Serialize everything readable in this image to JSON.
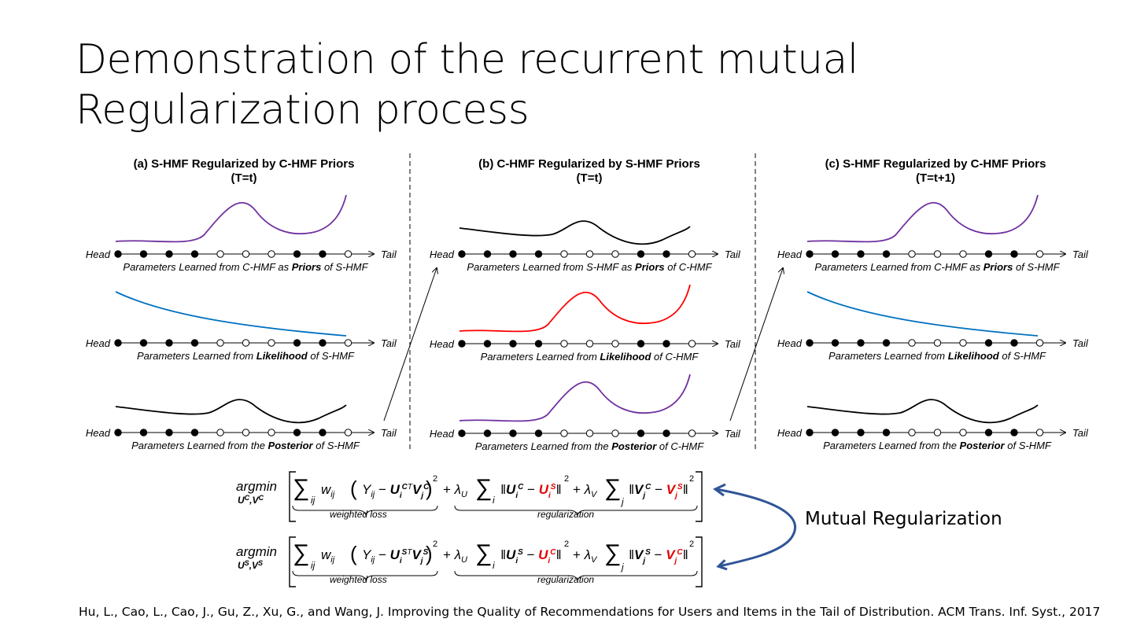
{
  "title": {
    "line1": "Demonstration of the recurrent mutual",
    "line2": "Regularization process"
  },
  "panels": [
    {
      "title_line1": "(a) S-HMF Regularized by C-HMF Priors",
      "title_line2": "(T=t)",
      "rows": [
        {
          "curve": "bump-rise",
          "color": "#7030a0",
          "caption_pre": "Parameters Learned from C-HMF as ",
          "caption_bold": "Priors",
          "caption_post": " of S-HMF"
        },
        {
          "curve": "decay",
          "color": "#0070c0",
          "caption_pre": "Parameters Learned from ",
          "caption_bold": "Likelihood",
          "caption_post": " of S-HMF"
        },
        {
          "curve": "posterior",
          "color": "#000000",
          "caption_pre": "Parameters Learned from the ",
          "caption_bold": "Posterior",
          "caption_post": " of S-HMF"
        }
      ]
    },
    {
      "title_line1": "(b) C-HMF Regularized by S-HMF Priors",
      "title_line2": "(T=t)",
      "rows": [
        {
          "curve": "posterior",
          "color": "#000000",
          "caption_pre": "Parameters Learned from S-HMF as ",
          "caption_bold": "Priors",
          "caption_post": " of C-HMF"
        },
        {
          "curve": "bump-rise",
          "color": "#ff0000",
          "caption_pre": "Parameters Learned from ",
          "caption_bold": "Likelihood",
          "caption_post": " of C-HMF"
        },
        {
          "curve": "bump-rise",
          "color": "#7030a0",
          "caption_pre": "Parameters Learned from the ",
          "caption_bold": "Posterior",
          "caption_post": " of C-HMF"
        }
      ]
    },
    {
      "title_line1": "(c) S-HMF Regularized by C-HMF Priors",
      "title_line2": "(T=t+1)",
      "rows": [
        {
          "curve": "bump-rise",
          "color": "#7030a0",
          "caption_pre": "Parameters Learned from C-HMF as ",
          "caption_bold": "Priors",
          "caption_post": " of S-HMF"
        },
        {
          "curve": "decay",
          "color": "#0070c0",
          "caption_pre": "Parameters Learned from ",
          "caption_bold": "Likelihood",
          "caption_post": " of S-HMF"
        },
        {
          "curve": "posterior",
          "color": "#000000",
          "caption_pre": "Parameters Learned from the ",
          "caption_bold": "Posterior",
          "caption_post": " of S-HMF"
        }
      ]
    }
  ],
  "axis": {
    "head_label": "Head",
    "tail_label": "Tail",
    "dot_pattern": [
      1,
      1,
      1,
      1,
      0,
      0,
      0,
      1,
      1,
      0
    ]
  },
  "equations": {
    "argmin": "argmin",
    "eq1_sub": "U",
    "eq1_subsup": "C",
    "eq2_subsup": "S",
    "weighted_loss": "weighted loss",
    "regularization": "regularization",
    "lambda_u": "λ",
    "lambda_v": "λ"
  },
  "mutual_label": "Mutual Regularization",
  "citation": "Hu, L., Cao, L., Cao, J., Gu, Z., Xu, G., and Wang, J. Improving the Quality of Recommendations for Users and Items in the Tail of Distribution. ACM Trans. Inf. Syst., 2017",
  "colors": {
    "arrow": "#2f5597",
    "highlight": "#e00000"
  }
}
